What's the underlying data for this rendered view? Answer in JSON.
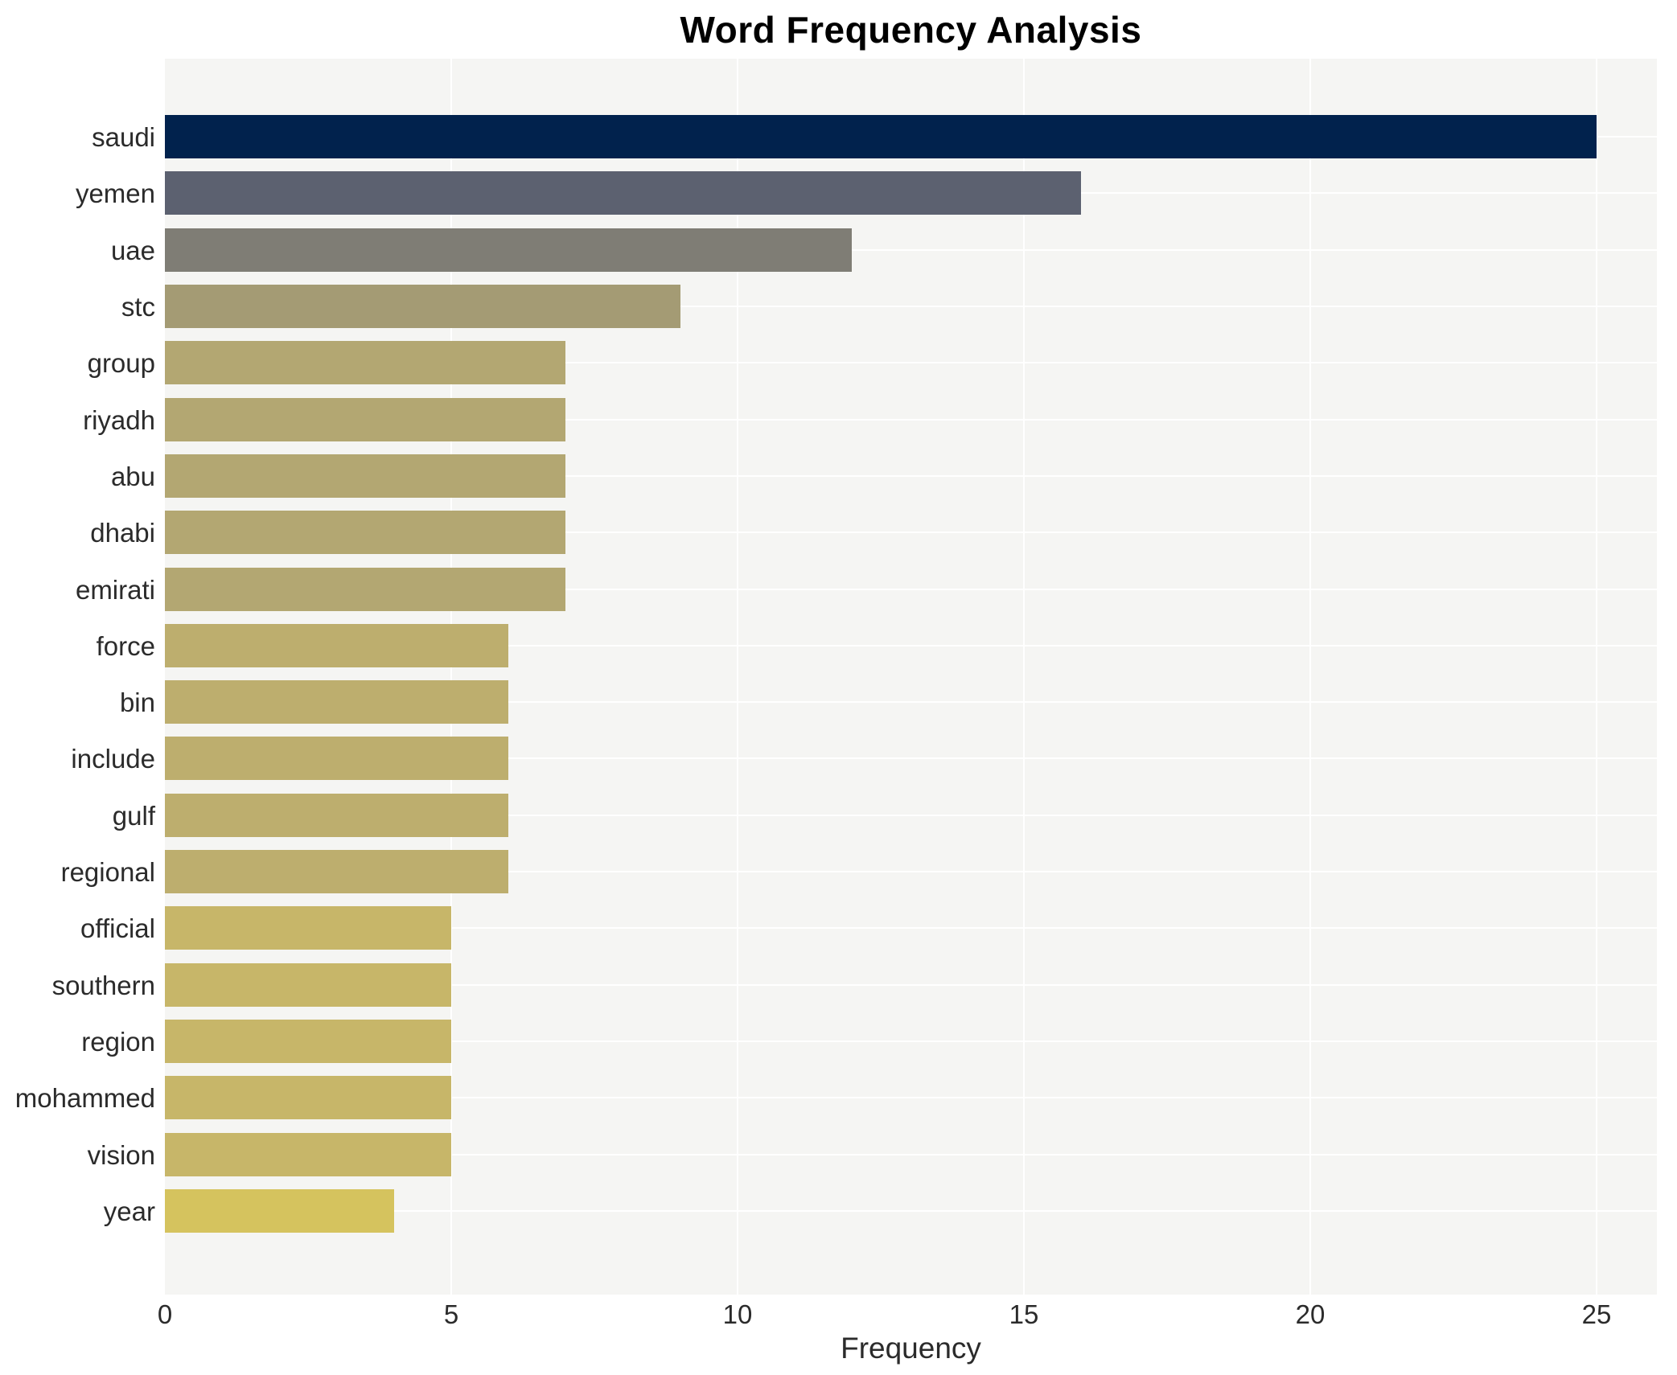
{
  "chart_data": {
    "type": "bar",
    "orientation": "horizontal",
    "title": "Word Frequency Analysis",
    "xlabel": "Frequency",
    "ylabel": "",
    "categories": [
      "saudi",
      "yemen",
      "uae",
      "stc",
      "group",
      "riyadh",
      "abu",
      "dhabi",
      "emirati",
      "force",
      "bin",
      "include",
      "gulf",
      "regional",
      "official",
      "southern",
      "region",
      "mohammed",
      "vision",
      "year"
    ],
    "values": [
      25,
      16,
      12,
      9,
      7,
      7,
      7,
      7,
      7,
      6,
      6,
      6,
      6,
      6,
      5,
      5,
      5,
      5,
      5,
      4
    ],
    "bar_colors": [
      "#01224d",
      "#5c6170",
      "#7f7d75",
      "#a49b74",
      "#b3a772",
      "#b3a772",
      "#b3a772",
      "#b3a772",
      "#b3a772",
      "#bdae6e",
      "#bdae6e",
      "#bdae6e",
      "#bdae6e",
      "#bdae6e",
      "#c7b669",
      "#c7b669",
      "#c7b669",
      "#c7b669",
      "#c7b669",
      "#d5c35e"
    ],
    "x_ticks": [
      0,
      5,
      10,
      15,
      20,
      25
    ],
    "xlim": [
      0,
      26.05
    ],
    "grid": true,
    "legend": "none",
    "plot_bg_color": "#f5f5f3",
    "gridline_color": "#ffffff",
    "text_color": "#2b2b2b",
    "title_color": "#000000"
  }
}
